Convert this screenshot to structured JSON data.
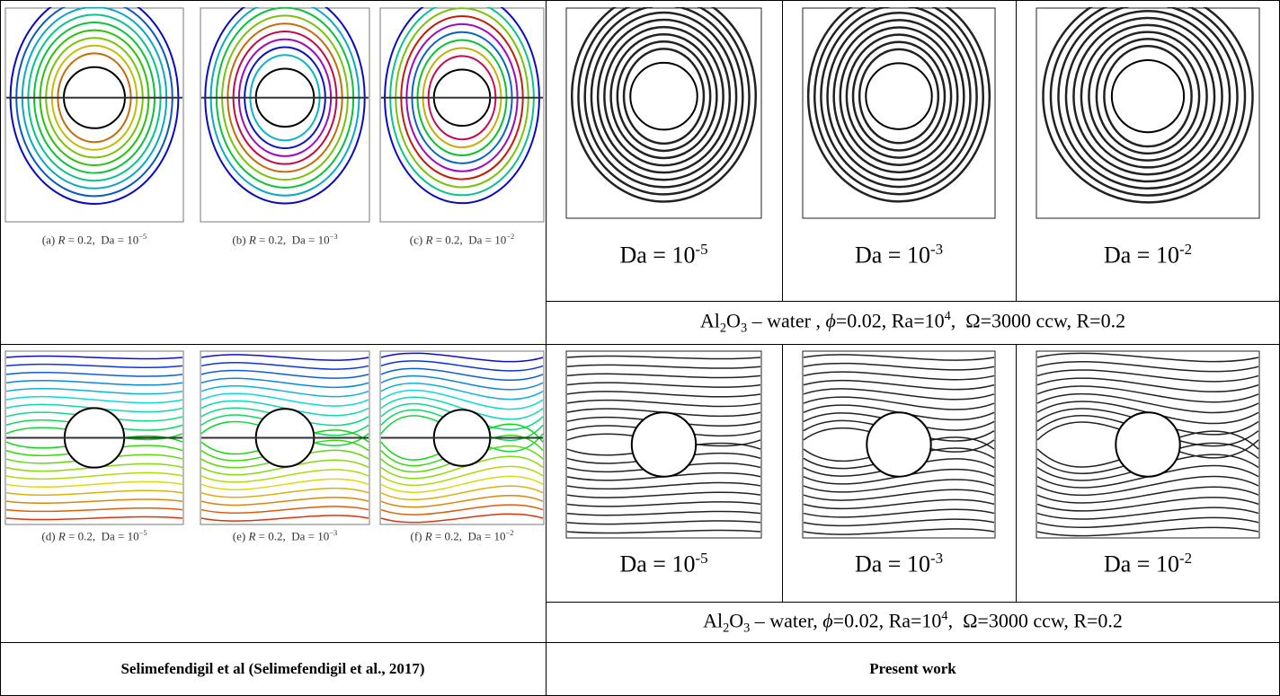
{
  "left_panels": [
    {
      "caption": [
        {
          "text": "(a) "
        },
        {
          "text": "R",
          "style": "italic"
        },
        {
          "text": " = 0.2,  Da = 10"
        },
        {
          "text": "−5",
          "style": "sup"
        }
      ]
    },
    {
      "caption": [
        {
          "text": "(b) "
        },
        {
          "text": "R",
          "style": "italic"
        },
        {
          "text": " = 0.2,  Da = 10"
        },
        {
          "text": "−3",
          "style": "sup"
        }
      ]
    },
    {
      "caption": [
        {
          "text": "(c) "
        },
        {
          "text": "R",
          "style": "italic"
        },
        {
          "text": " = 0.2,  Da = 10"
        },
        {
          "text": "−2",
          "style": "sup"
        }
      ]
    },
    {
      "caption": [
        {
          "text": "(d) "
        },
        {
          "text": "R",
          "style": "italic"
        },
        {
          "text": " = 0.2,  Da = 10"
        },
        {
          "text": "−5",
          "style": "sup"
        }
      ]
    },
    {
      "caption": [
        {
          "text": "(e) "
        },
        {
          "text": "R",
          "style": "italic"
        },
        {
          "text": " = 0.2,  Da = 10"
        },
        {
          "text": "−3",
          "style": "sup"
        }
      ]
    },
    {
      "caption": [
        {
          "text": "(f) "
        },
        {
          "text": "R",
          "style": "italic"
        },
        {
          "text": " = 0.2,  Da = 10"
        },
        {
          "text": "−2",
          "style": "sup"
        }
      ]
    }
  ],
  "right_top": {
    "labels": [
      [
        {
          "text": "Da = 10"
        },
        {
          "text": "-5",
          "style": "sup"
        }
      ],
      [
        {
          "text": "Da = 10"
        },
        {
          "text": "-3",
          "style": "sup"
        }
      ],
      [
        {
          "text": "Da = 10"
        },
        {
          "text": "-2",
          "style": "sup"
        }
      ]
    ],
    "caption": [
      {
        "text": "Al"
      },
      {
        "text": "2",
        "style": "sub"
      },
      {
        "text": "O"
      },
      {
        "text": "3",
        "style": "sub"
      },
      {
        "text": " – water , "
      },
      {
        "text": "ϕ",
        "style": "italic"
      },
      {
        "text": "=0.02, Ra=10"
      },
      {
        "text": "4",
        "style": "sup"
      },
      {
        "text": ",  Ω=3000 ccw, R=0.2"
      }
    ]
  },
  "right_bottom": {
    "labels": [
      [
        {
          "text": "Da = 10"
        },
        {
          "text": "-5",
          "style": "sup"
        }
      ],
      [
        {
          "text": "Da = 10"
        },
        {
          "text": "-3",
          "style": "sup"
        }
      ],
      [
        {
          "text": "Da = 10"
        },
        {
          "text": "-2",
          "style": "sup"
        }
      ]
    ],
    "caption": [
      {
        "text": "Al"
      },
      {
        "text": "2",
        "style": "sub"
      },
      {
        "text": "O"
      },
      {
        "text": "3",
        "style": "sub"
      },
      {
        "text": " – water, "
      },
      {
        "text": "ϕ",
        "style": "italic"
      },
      {
        "text": "=0.02, Ra=10"
      },
      {
        "text": "4",
        "style": "sup"
      },
      {
        "text": ",  Ω=3000 ccw, R=0.2"
      }
    ]
  },
  "footer": {
    "left": "Selimefendigil et al (Selimefendigil et al., 2017)",
    "right": "Present work"
  }
}
